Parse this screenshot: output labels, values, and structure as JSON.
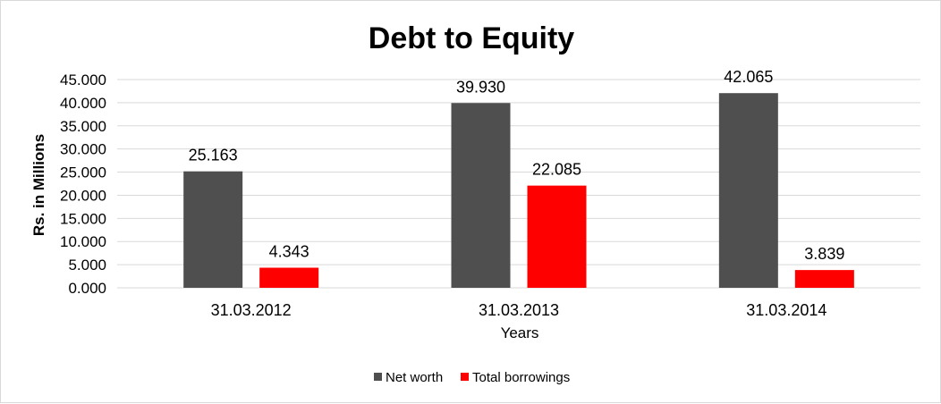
{
  "chart_data": {
    "type": "bar",
    "title": "Debt to Equity",
    "xlabel": "Years",
    "ylabel": "Rs. in Millions",
    "categories": [
      "31.03.2012",
      "31.03.2013",
      "31.03.2014"
    ],
    "series": [
      {
        "name": "Net worth",
        "values": [
          25.163,
          39.93,
          42.065
        ],
        "labels": [
          "25.163",
          "39.930",
          "42.065"
        ],
        "color": "#4f4f4f"
      },
      {
        "name": "Total borrowings",
        "values": [
          4.343,
          22.085,
          3.839
        ],
        "labels": [
          "4.343",
          "22.085",
          "3.839"
        ],
        "color": "#ff0000"
      }
    ],
    "ylim": [
      0,
      45
    ],
    "yticks": [
      "0.000",
      "5.000",
      "10.000",
      "15.000",
      "20.000",
      "25.000",
      "30.000",
      "35.000",
      "40.000",
      "45.000"
    ],
    "grid": true,
    "legend_position": "bottom"
  }
}
